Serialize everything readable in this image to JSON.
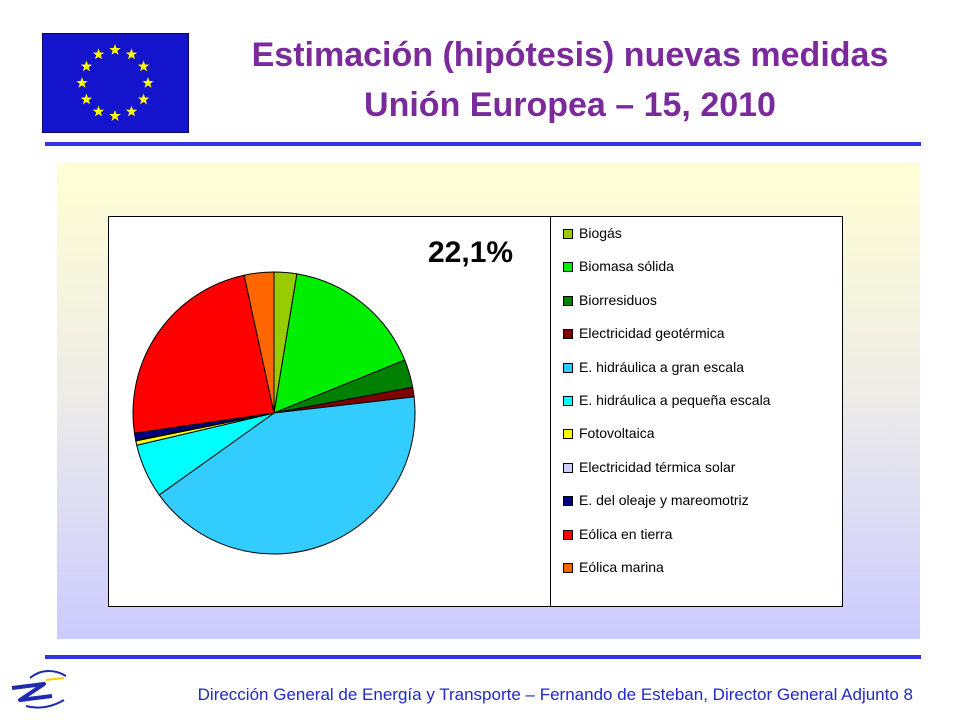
{
  "slide": {
    "title_line1": "Estimación (hipótesis) nuevas medidas",
    "title_line2": "Unión Europea – 15, 2010",
    "footer": "Dirección General de Energía y Transporte – Fernando de Esteban, Director General Adjunto 8"
  },
  "chart_data": {
    "type": "pie",
    "title": "",
    "annotation": "22,1%",
    "legend_position": "right",
    "categories": [
      "Biogás",
      "Biomasa sólida",
      "Biorresiduos",
      "Electricidad geotérmica",
      "E. hidráulica a gran escala",
      "E. hidráulica a pequeña escala",
      "Fotovoltaica",
      "Electricidad térmica solar",
      "E. del oleaje y mareomotriz",
      "Eólica en tierra",
      "Eólica marina"
    ],
    "values": [
      2.6,
      16.3,
      3.2,
      1.1,
      42.0,
      6.2,
      0.5,
      0.1,
      0.8,
      23.9,
      3.4
    ],
    "colors": [
      "#99cc00",
      "#00ee00",
      "#008000",
      "#800000",
      "#33ccff",
      "#00ffff",
      "#ffff00",
      "#ccccff",
      "#000080",
      "#ff0000",
      "#ff6600"
    ]
  }
}
